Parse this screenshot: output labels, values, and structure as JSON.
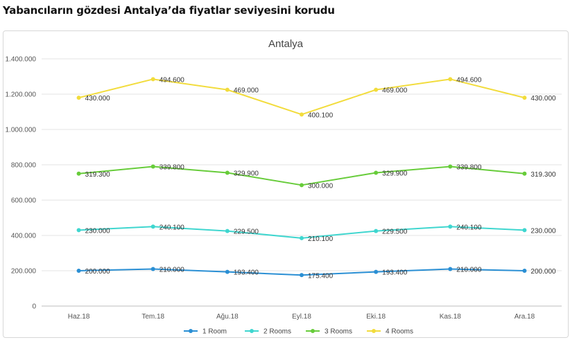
{
  "headline": "Yabancıların gözdesi Antalya’da fiyatlar seviyesini korudu",
  "chart_data": {
    "type": "line",
    "title": "Antalya",
    "xlabel": "",
    "ylabel": "",
    "categories": [
      "Haz.18",
      "Tem.18",
      "Ağu.18",
      "Eyl.18",
      "Eki.18",
      "Kas.18",
      "Ara.18"
    ],
    "ylim": [
      0,
      1400000
    ],
    "yticks": [
      {
        "value": 0,
        "label": "0"
      },
      {
        "value": 200000,
        "label": "200.000"
      },
      {
        "value": 400000,
        "label": "400.000"
      },
      {
        "value": 600000,
        "label": "600.000"
      },
      {
        "value": 800000,
        "label": "800.000"
      },
      {
        "value": 1000000,
        "label": "1.000.000"
      },
      {
        "value": 1200000,
        "label": "1.200.000"
      },
      {
        "value": 1400000,
        "label": "1.400.000"
      }
    ],
    "grid": true,
    "legend": "bottom",
    "series": [
      {
        "name": "1 Room",
        "color": "#2a8fd4",
        "values": [
          200000,
          210000,
          193400,
          175400,
          193400,
          210000,
          200000
        ],
        "labels": [
          "200.000",
          "210.000",
          "193.400",
          "175.400",
          "193.400",
          "210.000",
          "200.000"
        ]
      },
      {
        "name": "2 Rooms",
        "color": "#3fd6cf",
        "values": [
          430000,
          450000,
          425000,
          385000,
          425000,
          450000,
          430000
        ],
        "labels": [
          "230.000",
          "240.100",
          "229.500",
          "210.100",
          "229.500",
          "240.100",
          "230.000"
        ]
      },
      {
        "name": "3 Rooms",
        "color": "#67cc3a",
        "values": [
          750000,
          790000,
          755000,
          685000,
          755000,
          790000,
          750000
        ],
        "labels": [
          "319.300",
          "339.800",
          "329.900",
          "300.000",
          "329.900",
          "339.800",
          "319.300"
        ]
      },
      {
        "name": "4 Rooms",
        "color": "#f2dc3c",
        "values": [
          1180000,
          1285000,
          1225000,
          1085000,
          1225000,
          1285000,
          1180000
        ],
        "labels": [
          "430.000",
          "494.600",
          "469.000",
          "400.100",
          "469.000",
          "494.600",
          "430.000"
        ]
      }
    ]
  }
}
